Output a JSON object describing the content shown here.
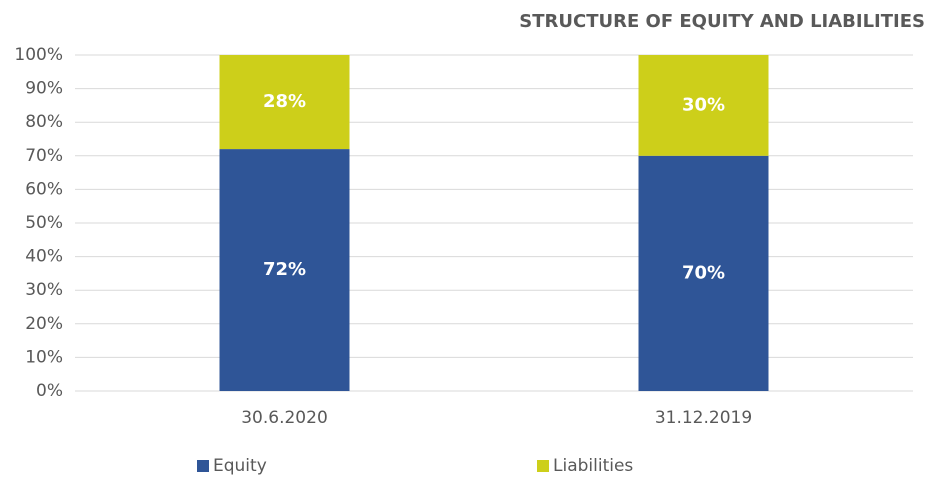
{
  "chart_data": {
    "type": "stacked_bar",
    "title": "STRUCTURE OF EQUITY AND LIABILITIES",
    "categories": [
      "30.6.2020",
      "31.12.2019"
    ],
    "series": [
      {
        "name": "Equity",
        "color": "#2f5597",
        "values": [
          72,
          70
        ],
        "value_labels": [
          "72%",
          "70%"
        ]
      },
      {
        "name": "Liabilities",
        "color": "#cdcf1a",
        "values": [
          28,
          30
        ],
        "value_labels": [
          "28%",
          "30%"
        ]
      }
    ],
    "ylim": [
      0,
      100
    ],
    "yticks": [
      {
        "value": 0,
        "label": "0%"
      },
      {
        "value": 10,
        "label": "10%"
      },
      {
        "value": 20,
        "label": "20%"
      },
      {
        "value": 30,
        "label": "30%"
      },
      {
        "value": 40,
        "label": "40%"
      },
      {
        "value": 50,
        "label": "50%"
      },
      {
        "value": 60,
        "label": "60%"
      },
      {
        "value": 70,
        "label": "70%"
      },
      {
        "value": 80,
        "label": "80%"
      },
      {
        "value": 90,
        "label": "90%"
      },
      {
        "value": 100,
        "label": "100%"
      }
    ],
    "grid": true,
    "legend": "bottom"
  }
}
